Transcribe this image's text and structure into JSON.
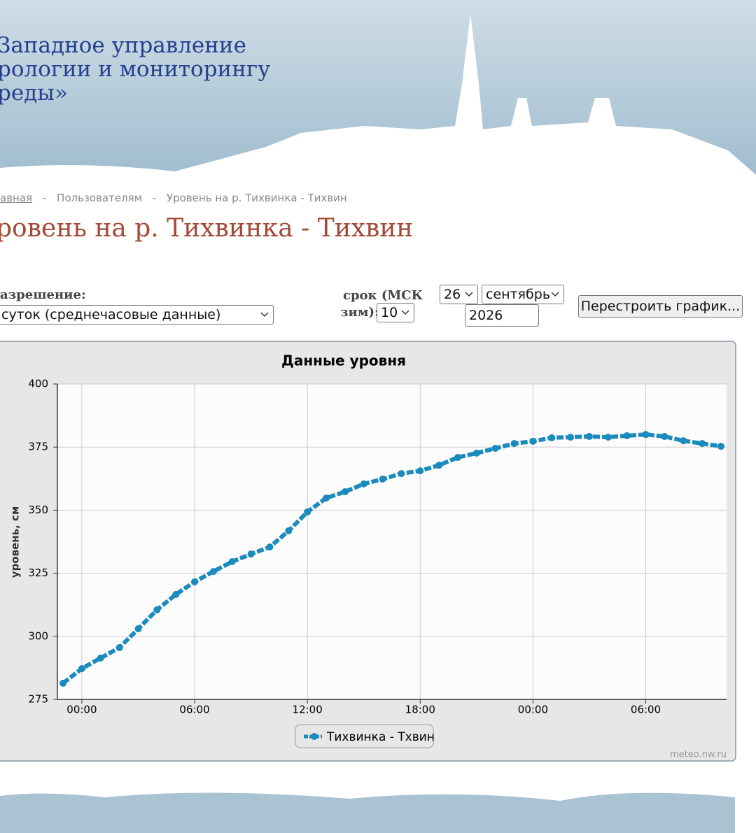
{
  "header": {
    "lines": [
      "Западное управление",
      "рологии и мониторингу",
      "реды»"
    ]
  },
  "breadcrumb": {
    "items": [
      "авная",
      "Пользователям",
      "Уровень на р. Тихвинка - Тихвин"
    ],
    "separator": "-"
  },
  "page_title": "ровень на р. Тихвинка - Тихвин",
  "form": {
    "resolution_label": "азрешение:",
    "resolution_value": "суток (среднечасовые данные)",
    "term_label_1": "срок (МСК",
    "term_label_2": "зим):",
    "term_value": "10",
    "day": "26",
    "month": "сентябрь",
    "year": "2026",
    "button": "Перестроить график..."
  },
  "chart_data": {
    "type": "line",
    "title": "Данные уровня",
    "y_label": "уровень, см",
    "credit": "meteo.nw.ru",
    "x": [
      -1,
      0,
      1,
      2,
      3,
      4,
      5,
      6,
      7,
      8,
      9,
      10,
      11,
      12,
      13,
      14,
      15,
      16,
      17,
      18,
      19,
      20,
      21,
      22,
      23,
      24,
      25,
      26,
      27,
      28,
      29,
      30,
      31,
      32,
      33,
      34
    ],
    "series": [
      {
        "name": "Тихвинка - Тхвин",
        "color": "#1b8abd",
        "values": [
          281.4,
          287.2,
          291.4,
          295.5,
          303,
          310.5,
          316.6,
          321.6,
          325.7,
          329.6,
          332.6,
          335.4,
          341.8,
          349.3,
          354.8,
          357.3,
          360.4,
          362.3,
          364.5,
          365.6,
          367.8,
          370.9,
          372.6,
          374.5,
          376.4,
          377.3,
          378.7,
          378.9,
          379.2,
          378.9,
          379.5,
          380,
          379.2,
          377.5,
          376.4,
          375.3
        ]
      }
    ],
    "xlim": [
      -1.3,
      34.3
    ],
    "xticks": [
      {
        "value": 0,
        "label": "00:00"
      },
      {
        "value": 6,
        "label": "06:00"
      },
      {
        "value": 12,
        "label": "12:00"
      },
      {
        "value": 18,
        "label": "18:00"
      },
      {
        "value": 24,
        "label": "00:00"
      },
      {
        "value": 30,
        "label": "06:00"
      }
    ],
    "ylim": [
      275,
      400
    ],
    "yticks": [
      275,
      300,
      325,
      350,
      375,
      400
    ],
    "grid": true
  }
}
